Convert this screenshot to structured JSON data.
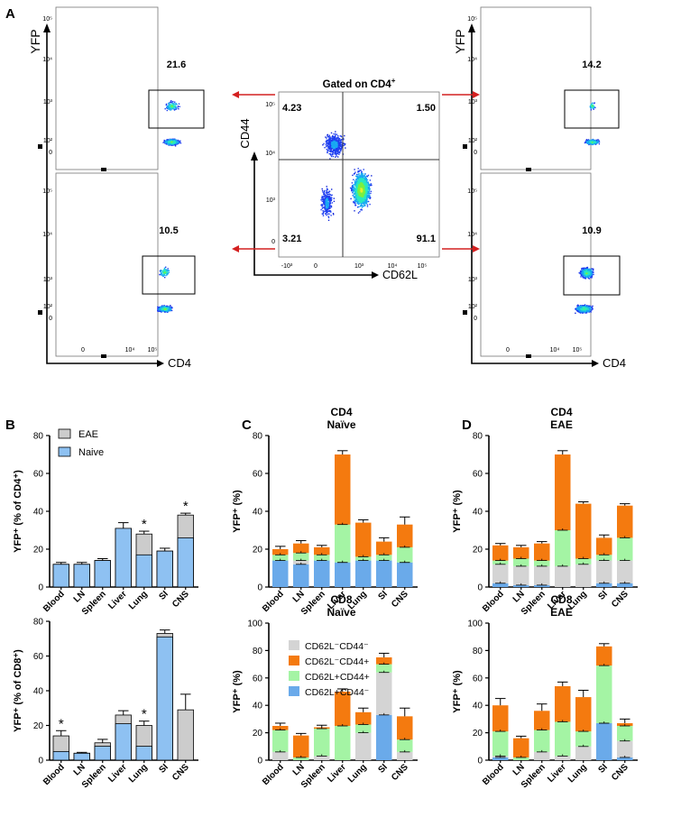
{
  "panels": {
    "A": {
      "letter": "A",
      "scatters": [
        {
          "id": "tl",
          "gate_value": "21.6",
          "ylabel": "YFP",
          "xlabel": "",
          "y_ticks": [
            "10⁵",
            "10⁴",
            "10³",
            "10²",
            "0"
          ],
          "x_ticks": []
        },
        {
          "id": "bl",
          "gate_value": "10.5",
          "ylabel": "",
          "xlabel": "CD4",
          "y_ticks": [
            "10⁵",
            "10⁴",
            "10³",
            "10²",
            "0"
          ],
          "x_ticks": [
            "0",
            "10⁴",
            "10⁵"
          ]
        },
        {
          "id": "tr",
          "gate_value": "14.2",
          "ylabel": "YFP",
          "xlabel": "",
          "y_ticks": [
            "10⁵",
            "10⁴",
            "10³",
            "10²",
            "0"
          ],
          "x_ticks": []
        },
        {
          "id": "br",
          "gate_value": "10.9",
          "ylabel": "",
          "xlabel": "CD4",
          "y_ticks": [
            "10⁵",
            "10⁴",
            "10³",
            "10²",
            "0"
          ],
          "x_ticks": [
            "0",
            "10⁴",
            "10⁵"
          ]
        }
      ],
      "center": {
        "title": "Gated on CD4",
        "title_sup": "+",
        "ylabel": "CD44",
        "xlabel": "CD62L",
        "quadrants": {
          "ul": "4.23",
          "ur": "1.50",
          "ll": "3.21",
          "lr": "91.1"
        },
        "y_ticks": [
          "10⁵",
          "10⁴",
          "10³",
          "0"
        ],
        "x_ticks": [
          "-10³",
          "0",
          "10³",
          "10⁴",
          "10⁵"
        ]
      },
      "arrow_color": "#d42020"
    },
    "B": {
      "letter": "B"
    },
    "C": {
      "letter": "C"
    },
    "D": {
      "letter": "D"
    }
  },
  "colors": {
    "grey": "#d4d4d4",
    "orange": "#f47a0f",
    "green": "#a4f4a4",
    "blue": "#6aaaea",
    "eae_grey": "#cccccc",
    "naive_blue": "#8ec1f2"
  },
  "chart_data": [
    {
      "type": "bar",
      "id": "B-top",
      "panel": "B",
      "title": "",
      "ylabel": "YFP⁺ (% of CD4⁺)",
      "ylim": [
        0,
        80
      ],
      "yticks": [
        0,
        20,
        40,
        60,
        80
      ],
      "categories": [
        "Blood",
        "LN",
        "Spleen",
        "Liver",
        "Lung",
        "SI",
        "CNS"
      ],
      "legend": [
        "EAE",
        "Naive"
      ],
      "legend_position": "top-left",
      "series": [
        {
          "name": "EAE",
          "values": [
            12,
            12,
            14,
            31,
            28,
            19,
            38
          ]
        },
        {
          "name": "Naive",
          "values": [
            12,
            12,
            14,
            31,
            17,
            19,
            26
          ]
        }
      ],
      "errors": [
        1,
        1,
        1,
        3,
        1.5,
        1.5,
        1
      ],
      "significance": [
        "",
        "",
        "",
        "",
        "*",
        "",
        "*"
      ]
    },
    {
      "type": "bar",
      "id": "B-bottom",
      "panel": "B",
      "title": "",
      "ylabel": "YFP⁺ (% of CD8⁺)",
      "ylim": [
        0,
        80
      ],
      "yticks": [
        0,
        20,
        40,
        60,
        80
      ],
      "categories": [
        "Blood",
        "LN",
        "Spleen",
        "Liver",
        "Lung",
        "SI",
        "CNS"
      ],
      "legend": [],
      "legend_position": "none",
      "series": [
        {
          "name": "EAE",
          "values": [
            14,
            4,
            10,
            26,
            20,
            73,
            29
          ]
        },
        {
          "name": "Naive",
          "values": [
            5,
            4,
            8,
            21,
            8,
            71,
            0
          ]
        }
      ],
      "errors": [
        3,
        0.5,
        2,
        2.5,
        2.5,
        2,
        9
      ],
      "significance": [
        "*",
        "",
        "",
        "",
        "*",
        "",
        ""
      ]
    },
    {
      "type": "bar",
      "id": "C-top",
      "panel": "C",
      "title": "CD4",
      "subtitle": "Naïve",
      "ylabel": "YFP⁺ (%)",
      "ylim": [
        0,
        80
      ],
      "yticks": [
        0,
        20,
        40,
        60,
        80
      ],
      "categories": [
        "Blood",
        "LN",
        "Spleen",
        "Liver",
        "Lung",
        "SI",
        "CNS"
      ],
      "legend": [],
      "legend_position": "none",
      "series": [
        {
          "name": "CD62L+CD44⁻",
          "values": [
            14,
            12,
            14,
            13,
            14,
            14,
            13
          ]
        },
        {
          "name": "CD62L⁻CD44⁻",
          "values": [
            0,
            2,
            0,
            0,
            0,
            0,
            0
          ]
        },
        {
          "name": "CD62L+CD44+",
          "values": [
            3,
            4,
            3,
            20,
            2,
            3,
            8
          ]
        },
        {
          "name": "CD62L⁻CD44+",
          "values": [
            3,
            5,
            4,
            37,
            18,
            7,
            12
          ]
        }
      ],
      "errors": [
        1.5,
        1.5,
        1,
        2,
        1.5,
        2,
        4
      ]
    },
    {
      "type": "bar",
      "id": "C-bottom",
      "panel": "C",
      "title": "CD8",
      "subtitle": "Naïve",
      "ylabel": "YFP⁺ (%)",
      "ylim": [
        0,
        100
      ],
      "yticks": [
        0,
        20,
        40,
        60,
        80,
        100
      ],
      "categories": [
        "Blood",
        "LN",
        "Spleen",
        "Liver",
        "Lung",
        "SI",
        "CNS"
      ],
      "legend": [
        "CD62L⁻CD44⁻",
        "CD62L⁻CD44+",
        "CD62L+CD44+",
        "CD62L+CD44⁻"
      ],
      "legend_position": "top-left",
      "series": [
        {
          "name": "CD62L+CD44⁻",
          "values": [
            0,
            0,
            0,
            0,
            0,
            33,
            0
          ]
        },
        {
          "name": "CD62L⁻CD44⁻",
          "values": [
            6,
            0,
            3,
            0,
            20,
            31,
            6
          ]
        },
        {
          "name": "CD62L+CD44+",
          "values": [
            16,
            2,
            20,
            25,
            6,
            6,
            9
          ]
        },
        {
          "name": "CD62L⁻CD44+",
          "values": [
            3,
            16,
            1,
            25,
            9,
            5,
            17
          ]
        }
      ],
      "errors": [
        2,
        1.5,
        1.5,
        2,
        3,
        3,
        6
      ]
    },
    {
      "type": "bar",
      "id": "D-top",
      "panel": "D",
      "title": "CD4",
      "subtitle": "EAE",
      "ylabel": "YFP⁺ (%)",
      "ylim": [
        0,
        80
      ],
      "yticks": [
        0,
        20,
        40,
        60,
        80
      ],
      "categories": [
        "Blood",
        "LN",
        "Spleen",
        "Liver",
        "Lung",
        "SI",
        "CNS"
      ],
      "legend": [],
      "legend_position": "none",
      "series": [
        {
          "name": "CD62L+CD44⁻",
          "values": [
            2,
            1,
            1,
            0,
            0,
            2,
            2
          ]
        },
        {
          "name": "CD62L⁻CD44⁻",
          "values": [
            10,
            10,
            10,
            11,
            12,
            12,
            12
          ]
        },
        {
          "name": "CD62L+CD44+",
          "values": [
            2,
            4,
            3,
            19,
            3,
            3,
            12
          ]
        },
        {
          "name": "CD62L⁻CD44+",
          "values": [
            8,
            6,
            9,
            40,
            29,
            9,
            17
          ]
        }
      ],
      "errors": [
        1,
        1,
        1,
        2,
        1,
        1.5,
        1
      ]
    },
    {
      "type": "bar",
      "id": "D-bottom",
      "panel": "D",
      "title": "CD8",
      "subtitle": "EAE",
      "ylabel": "YFP⁺ (%)",
      "ylim": [
        0,
        100
      ],
      "yticks": [
        0,
        20,
        40,
        60,
        80,
        100
      ],
      "categories": [
        "Blood",
        "LN",
        "Spleen",
        "Liver",
        "Lung",
        "SI",
        "CNS"
      ],
      "legend": [],
      "legend_position": "none",
      "series": [
        {
          "name": "CD62L+CD44⁻",
          "values": [
            2,
            0,
            0,
            0,
            0,
            27,
            2
          ]
        },
        {
          "name": "CD62L⁻CD44⁻",
          "values": [
            1,
            0,
            6,
            3,
            10,
            0,
            12
          ]
        },
        {
          "name": "CD62L+CD44+",
          "values": [
            18,
            2,
            16,
            25,
            11,
            42,
            11
          ]
        },
        {
          "name": "CD62L⁻CD44+",
          "values": [
            19,
            14,
            14,
            26,
            25,
            14,
            2
          ]
        }
      ],
      "errors": [
        5,
        1.5,
        5,
        3,
        5,
        2,
        3
      ]
    }
  ]
}
